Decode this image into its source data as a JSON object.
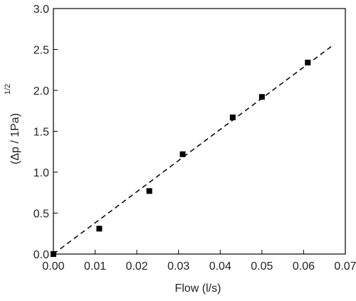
{
  "chart_data": {
    "type": "scatter",
    "x_label": "Flow (l/s)",
    "y_label": "(Δp / 1Pa)",
    "y_label_superscript": "1/2",
    "series": [
      {
        "name": "data",
        "type": "scatter",
        "color": "#000000",
        "x": [
          0,
          0.011,
          0.023,
          0.031,
          0.043,
          0.05,
          0.061
        ],
        "values": [
          0,
          0.31,
          0.77,
          1.22,
          1.67,
          1.92,
          2.34
        ]
      },
      {
        "name": "fit",
        "type": "line",
        "color": "#000000",
        "dashed": true,
        "x": [
          0,
          0.067
        ],
        "values": [
          0,
          2.55
        ]
      }
    ],
    "xlim": [
      0,
      0.07
    ],
    "xticks": [
      {
        "value": 0,
        "label": "0.00"
      },
      0.01,
      0.02,
      0.03,
      0.04,
      0.05,
      0.06,
      0.07
    ],
    "ylim": [
      0,
      3
    ],
    "yticks": [
      {
        "value": 0,
        "label": "0.0"
      },
      0.5,
      {
        "value": 1,
        "label": "1.0"
      },
      1.5,
      {
        "value": 2,
        "label": "2.0"
      },
      2.5,
      {
        "value": 3,
        "label": "3.0"
      }
    ],
    "grid": false,
    "legend": false
  }
}
